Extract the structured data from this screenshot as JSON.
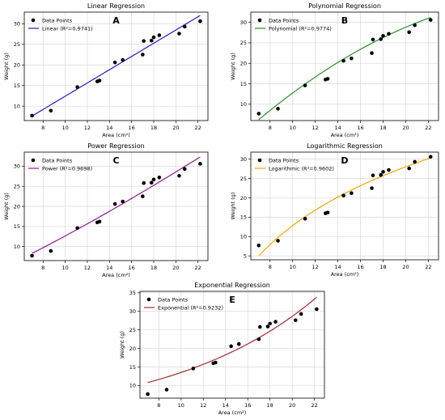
{
  "chart_data": [
    {
      "id": "linear",
      "type": "scatter",
      "panel_letter": "A",
      "title": "Linear Regression",
      "xlabel": "Area (cm²)",
      "ylabel": "Weight (g)",
      "xlim": [
        6.3,
        22.9
      ],
      "ylim": [
        6.5,
        32.8
      ],
      "xticks": [
        8,
        10,
        12,
        14,
        16,
        18,
        20,
        22
      ],
      "yticks": [
        10,
        15,
        20,
        25,
        30
      ],
      "grid": true,
      "legend_position": "top-left",
      "fit_color": "#1f1fcc",
      "series": [
        {
          "name": "Data Points",
          "kind": "points",
          "x": [
            7.0,
            8.7,
            11.1,
            12.9,
            13.1,
            14.5,
            15.2,
            17.0,
            17.1,
            17.8,
            18.0,
            18.5,
            20.3,
            20.8,
            22.2
          ],
          "y": [
            7.7,
            8.9,
            14.6,
            16.0,
            16.2,
            20.6,
            21.2,
            22.5,
            25.8,
            25.9,
            26.7,
            27.2,
            27.6,
            29.3,
            30.6
          ]
        },
        {
          "name": "Linear (R²=0.9741)",
          "kind": "fit",
          "model": "linear",
          "x_range": [
            7.0,
            22.2
          ],
          "x": [
            7.0,
            22.2
          ],
          "y": [
            7.6,
            32.0
          ]
        }
      ]
    },
    {
      "id": "polynomial",
      "type": "scatter",
      "panel_letter": "B",
      "title": "Polynomial Regression",
      "xlabel": "Area (cm²)",
      "ylabel": "Weight (g)",
      "xlim": [
        6.3,
        22.9
      ],
      "ylim": [
        6.0,
        32.5
      ],
      "xticks": [
        8,
        10,
        12,
        14,
        16,
        18,
        20,
        22
      ],
      "yticks": [
        10,
        15,
        20,
        25,
        30
      ],
      "grid": true,
      "legend_position": "top-left",
      "fit_color": "#2a8c2a",
      "series": [
        {
          "name": "Data Points",
          "kind": "points",
          "x": [
            7.0,
            8.7,
            11.1,
            12.9,
            13.1,
            14.5,
            15.2,
            17.0,
            17.1,
            17.8,
            18.0,
            18.5,
            20.3,
            20.8,
            22.2
          ],
          "y": [
            7.7,
            8.9,
            14.6,
            16.0,
            16.2,
            20.6,
            21.2,
            22.5,
            25.8,
            25.9,
            26.7,
            27.2,
            27.6,
            29.3,
            30.6
          ]
        },
        {
          "name": "Polynomial (R²=0.9774)",
          "kind": "fit",
          "model": "polynomial",
          "x_range": [
            7.0,
            22.2
          ],
          "x": [
            7.0,
            11.0,
            15.0,
            18.0,
            22.2
          ],
          "y": [
            6.2,
            14.8,
            21.8,
            26.3,
            31.2
          ]
        }
      ]
    },
    {
      "id": "power",
      "type": "scatter",
      "panel_letter": "C",
      "title": "Power Regression",
      "xlabel": "Area (cm²)",
      "ylabel": "Weight (g)",
      "xlim": [
        6.3,
        22.9
      ],
      "ylim": [
        6.5,
        33.5
      ],
      "xticks": [
        8,
        10,
        12,
        14,
        16,
        18,
        20,
        22
      ],
      "yticks": [
        10,
        15,
        20,
        25,
        30
      ],
      "grid": true,
      "legend_position": "top-left",
      "fit_color": "#8c1a8c",
      "series": [
        {
          "name": "Data Points",
          "kind": "points",
          "x": [
            7.0,
            8.7,
            11.1,
            12.9,
            13.1,
            14.5,
            15.2,
            17.0,
            17.1,
            17.8,
            18.0,
            18.5,
            20.3,
            20.8,
            22.2
          ],
          "y": [
            7.7,
            8.9,
            14.6,
            16.0,
            16.2,
            20.6,
            21.2,
            22.5,
            25.8,
            25.9,
            26.7,
            27.2,
            27.6,
            29.3,
            30.6
          ]
        },
        {
          "name": "Power (R²=0.9698)",
          "kind": "fit",
          "model": "power",
          "x_range": [
            7.0,
            22.2
          ],
          "x": [
            7.0,
            22.2
          ],
          "y": [
            8.3,
            32.3
          ]
        }
      ]
    },
    {
      "id": "logarithmic",
      "type": "scatter",
      "panel_letter": "D",
      "title": "Logarithmic Regression",
      "xlabel": "Area (cm²)",
      "ylabel": "Weight (g)",
      "xlim": [
        6.3,
        22.9
      ],
      "ylim": [
        4.0,
        31.8
      ],
      "xticks": [
        8,
        10,
        12,
        14,
        16,
        18,
        20,
        22
      ],
      "yticks": [
        5,
        10,
        15,
        20,
        25,
        30
      ],
      "grid": true,
      "legend_position": "top-left",
      "fit_color": "#f0a800",
      "series": [
        {
          "name": "Data Points",
          "kind": "points",
          "x": [
            7.0,
            8.7,
            11.1,
            12.9,
            13.1,
            14.5,
            15.2,
            17.0,
            17.1,
            17.8,
            18.0,
            18.5,
            20.3,
            20.8,
            22.2
          ],
          "y": [
            7.7,
            8.9,
            14.6,
            16.0,
            16.2,
            20.6,
            21.2,
            22.5,
            25.8,
            25.9,
            26.7,
            27.2,
            27.6,
            29.3,
            30.6
          ]
        },
        {
          "name": "Logarithmic (R²=0.9602)",
          "kind": "fit",
          "model": "logarithmic",
          "x_range": [
            7.0,
            22.2
          ],
          "x": [
            7.0,
            22.2
          ],
          "y": [
            5.0,
            30.3
          ]
        }
      ]
    },
    {
      "id": "exponential",
      "type": "scatter",
      "panel_letter": "E",
      "title": "Exponential Regression",
      "xlabel": "Area (cm²)",
      "ylabel": "Weight (g)",
      "xlim": [
        6.3,
        22.9
      ],
      "ylim": [
        6.6,
        35.4
      ],
      "xticks": [
        8,
        10,
        12,
        14,
        16,
        18,
        20,
        22
      ],
      "yticks": [
        10,
        15,
        20,
        25,
        30,
        35
      ],
      "grid": true,
      "legend_position": "top-left",
      "fit_color": "#a52a2a",
      "series": [
        {
          "name": "Data Points",
          "kind": "points",
          "x": [
            7.0,
            8.7,
            11.1,
            12.9,
            13.1,
            14.5,
            15.2,
            17.0,
            17.1,
            17.8,
            18.0,
            18.5,
            20.3,
            20.8,
            22.2
          ],
          "y": [
            7.7,
            8.9,
            14.6,
            16.0,
            16.2,
            20.6,
            21.2,
            22.5,
            25.8,
            25.9,
            26.7,
            27.2,
            27.6,
            29.3,
            30.6
          ]
        },
        {
          "name": "Exponential (R²=0.9232)",
          "kind": "fit",
          "model": "exponential",
          "x_range": [
            7.0,
            22.2
          ],
          "x": [
            7.0,
            22.2
          ],
          "y": [
            10.8,
            33.8
          ]
        }
      ]
    }
  ]
}
